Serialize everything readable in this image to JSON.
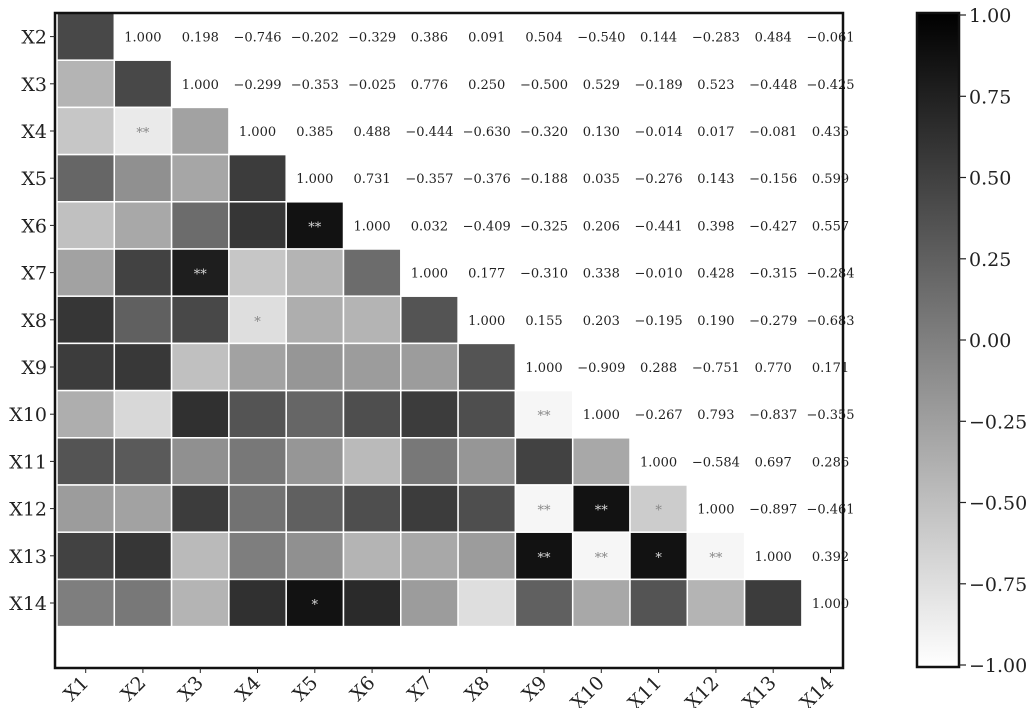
{
  "chart_data": {
    "type": "heatmap",
    "title": "",
    "xlabel": "",
    "ylabel": "",
    "x_labels": [
      "X1",
      "X2",
      "X3",
      "X4",
      "X5",
      "X6",
      "X7",
      "X8",
      "X9",
      "X10",
      "X11",
      "X12",
      "X13",
      "X14"
    ],
    "y_labels": [
      "X2",
      "X3",
      "X4",
      "X5",
      "X6",
      "X7",
      "X8",
      "X9",
      "X10",
      "X11",
      "X12",
      "X13",
      "X14"
    ],
    "upper_values": [
      [
        "1.000",
        "0.198",
        "−0.746",
        "−0.202",
        "−0.329",
        "0.386",
        "0.091",
        "0.504",
        "−0.540",
        "0.144",
        "−0.283",
        "0.484",
        "−0.061"
      ],
      [
        "1.000",
        "−0.299",
        "−0.353",
        "−0.025",
        "0.776",
        "0.250",
        "−0.500",
        "0.529",
        "−0.189",
        "0.523",
        "−0.448",
        "−0.425"
      ],
      [
        "1.000",
        "0.385",
        "0.488",
        "−0.444",
        "−0.630",
        "−0.320",
        "0.130",
        "−0.014",
        "0.017",
        "−0.081",
        "0.435"
      ],
      [
        "1.000",
        "0.731",
        "−0.357",
        "−0.376",
        "−0.188",
        "0.035",
        "−0.276",
        "0.143",
        "−0.156",
        "0.599"
      ],
      [
        "1.000",
        "0.032",
        "−0.409",
        "−0.325",
        "0.206",
        "−0.441",
        "0.398",
        "−0.427",
        "0.557"
      ],
      [
        "1.000",
        "0.177",
        "−0.310",
        "0.338",
        "−0.010",
        "0.428",
        "−0.315",
        "−0.284"
      ],
      [
        "1.000",
        "0.155",
        "0.203",
        "−0.195",
        "0.190",
        "−0.279",
        "−0.683"
      ],
      [
        "1.000",
        "−0.909",
        "0.288",
        "−0.751",
        "0.770",
        "0.171"
      ],
      [
        "1.000",
        "−0.267",
        "0.793",
        "−0.837",
        "−0.355"
      ],
      [
        "1.000",
        "−0.584",
        "0.697",
        "0.286"
      ],
      [
        "1.000",
        "−0.897",
        "−0.461"
      ],
      [
        "1.000",
        "0.392"
      ],
      [
        "1.000"
      ]
    ],
    "lower_values": [
      [
        0.5
      ],
      [
        -0.4,
        0.5
      ],
      [
        -0.55,
        -0.85,
        -0.25
      ],
      [
        0.25,
        -0.1,
        -0.28,
        0.6
      ],
      [
        -0.5,
        -0.3,
        0.2,
        0.65,
        0.95
      ],
      [
        -0.25,
        0.55,
        0.85,
        -0.55,
        -0.4,
        0.2
      ],
      [
        0.65,
        0.3,
        0.5,
        -0.75,
        -0.35,
        -0.4,
        0.4
      ],
      [
        0.6,
        0.63,
        -0.5,
        -0.25,
        -0.15,
        -0.2,
        -0.2,
        0.4
      ],
      [
        -0.35,
        -0.7,
        0.7,
        0.4,
        0.25,
        0.45,
        0.6,
        0.45,
        -0.95
      ],
      [
        0.4,
        0.35,
        -0.1,
        0.1,
        -0.15,
        -0.45,
        0.1,
        -0.15,
        0.55,
        -0.3
      ],
      [
        -0.2,
        -0.25,
        0.6,
        0.15,
        0.3,
        0.45,
        0.6,
        0.45,
        -0.95,
        0.95,
        -0.6
      ],
      [
        0.55,
        0.65,
        -0.45,
        0.05,
        -0.1,
        -0.4,
        -0.3,
        -0.2,
        0.95,
        -0.95,
        0.95,
        -0.95
      ],
      [
        0.05,
        0.1,
        -0.4,
        0.7,
        0.95,
        0.75,
        -0.2,
        -0.75,
        0.3,
        -0.3,
        0.4,
        -0.4,
        0.6
      ]
    ],
    "stars": [
      {
        "row": 2,
        "col": 1,
        "label": "**"
      },
      {
        "row": 4,
        "col": 4,
        "label": "**"
      },
      {
        "row": 5,
        "col": 2,
        "label": "**"
      },
      {
        "row": 6,
        "col": 3,
        "label": "*"
      },
      {
        "row": 8,
        "col": 8,
        "label": "**"
      },
      {
        "row": 10,
        "col": 8,
        "label": "**"
      },
      {
        "row": 10,
        "col": 9,
        "label": "**"
      },
      {
        "row": 10,
        "col": 10,
        "label": "*"
      },
      {
        "row": 11,
        "col": 8,
        "label": "**"
      },
      {
        "row": 11,
        "col": 9,
        "label": "**"
      },
      {
        "row": 11,
        "col": 10,
        "label": "*"
      },
      {
        "row": 11,
        "col": 11,
        "label": "**"
      },
      {
        "row": 12,
        "col": 4,
        "label": "*"
      }
    ],
    "colorbar": {
      "range": [
        -1.0,
        1.0
      ],
      "ticks": [
        "1.00",
        "0.75",
        "0.50",
        "0.25",
        "0.00",
        "−0.25",
        "−0.50",
        "−0.75",
        "−1.00"
      ],
      "low_color": "#ffffff",
      "high_color": "#000000"
    }
  }
}
